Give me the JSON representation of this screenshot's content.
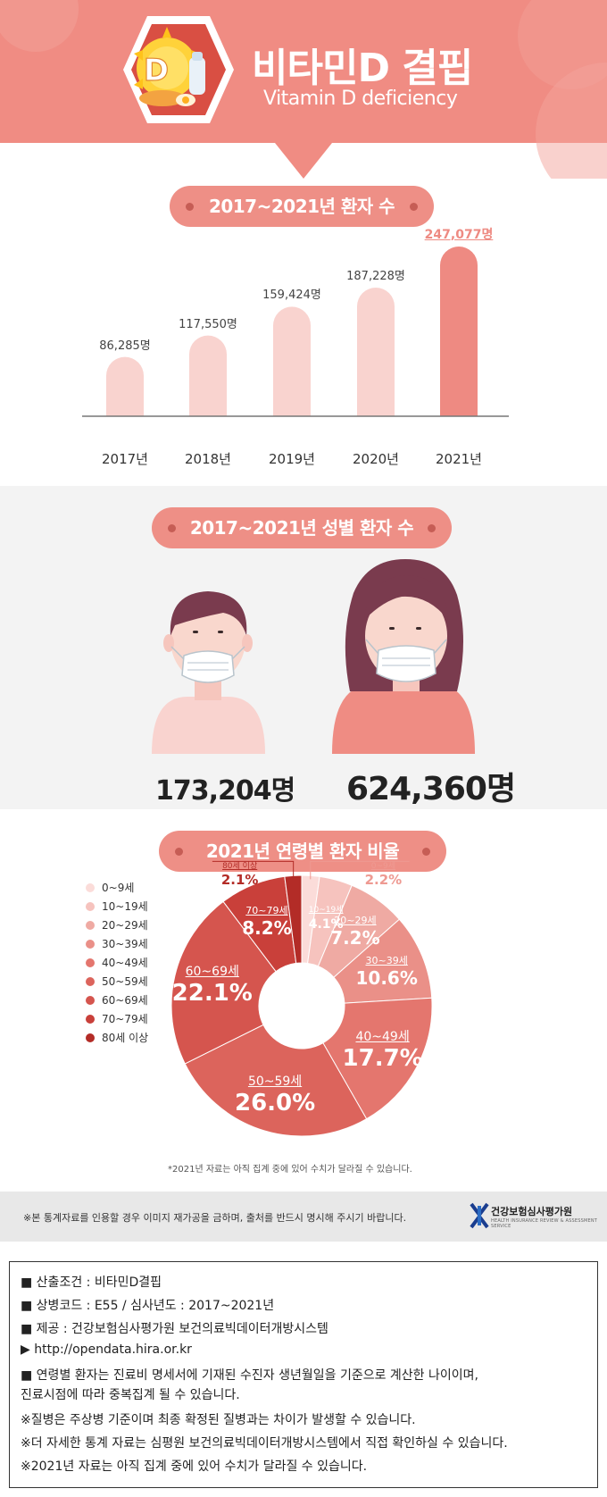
{
  "header": {
    "title": "비타민D 결핍",
    "subtitle": "Vitamin D deficiency",
    "badge_letter": "D"
  },
  "bar_section": {
    "title": "2017~2021년 환자 수"
  },
  "gender_section": {
    "title": "2017~2021년 성별 환자 수",
    "male_count": "173,204명",
    "female_count": "624,360명"
  },
  "pie_section": {
    "title": "2021년 연령별 환자 비율",
    "footnote": "*2021년 자료는 아직 집계 중에 있어 수치가 달라질 수 있습니다."
  },
  "band": {
    "notice": "※본 통계자료를 인용할 경우 이미지 재가공을 금하며, 출처를 반드시 명시해 주시기 바랍니다.",
    "org_name": "건강보험심사평가원",
    "org_sub": "HEALTH INSURANCE REVIEW & ASSESSMENT SERVICE"
  },
  "notes": [
    "■ 산출조건 : 비타민D결핍",
    "■ 상병코드 : E55 / 심사년도 : 2017~2021년",
    "■ 제공 : 건강보험심사평가원 보건의료빅데이터개방시스템",
    "▶ http://opendata.hira.or.kr",
    "■ 연령별 환자는 진료비 명세서에 기재된 수진자 생년월일을 기준으로 계산한 나이이며,",
    "    진료시점에 따라 중복집계 될 수 있습니다.",
    "※질병은 주상병 기준이며 최종 확정된 질병과는 차이가 발생할 수 있습니다.",
    "※더 자세한 통계 자료는 심평원 보건의료빅데이터개방시스템에서 직접 확인하실 수 있습니다.",
    "※2021년 자료는 아직 집계 중에 있어 수치가 달라질 수 있습니다."
  ],
  "colors": {
    "header_bg": "#f08c83",
    "accent": "#ee8f86",
    "bar_light": "#f9d3cf",
    "bar_highlight": "#ee8a82"
  },
  "chart_data": [
    {
      "type": "bar",
      "title": "2017~2021년 환자 수",
      "categories": [
        "2017년",
        "2018년",
        "2019년",
        "2020년",
        "2021년"
      ],
      "values": [
        86285,
        117550,
        159424,
        187228,
        247077
      ],
      "value_labels": [
        "86,285명",
        "117,550명",
        "159,424명",
        "187,228명",
        "247,077명"
      ],
      "ylim": [
        0,
        247077
      ]
    },
    {
      "type": "bar",
      "title": "2017~2021년 성별 환자 수",
      "categories": [
        "남성",
        "여성"
      ],
      "values": [
        173204,
        624360
      ],
      "value_labels": [
        "173,204명",
        "624,360명"
      ]
    },
    {
      "type": "pie",
      "title": "2021년 연령별 환자 비율",
      "categories": [
        "0~9세",
        "10~19세",
        "20~29세",
        "30~39세",
        "40~49세",
        "50~59세",
        "60~69세",
        "70~79세",
        "80세 이상"
      ],
      "values": [
        2.2,
        4.1,
        7.2,
        10.6,
        17.7,
        26.0,
        22.1,
        8.2,
        2.1
      ],
      "value_labels": [
        "2.2%",
        "4.1%",
        "7.2%",
        "10.6%",
        "17.7%",
        "26.0%",
        "22.1%",
        "8.2%",
        "2.1%"
      ],
      "colors": [
        "#fbdcd9",
        "#f6c3be",
        "#efaaa3",
        "#ea9088",
        "#e4766e",
        "#dc645c",
        "#d5554e",
        "#c9403a",
        "#b32c27"
      ]
    }
  ]
}
